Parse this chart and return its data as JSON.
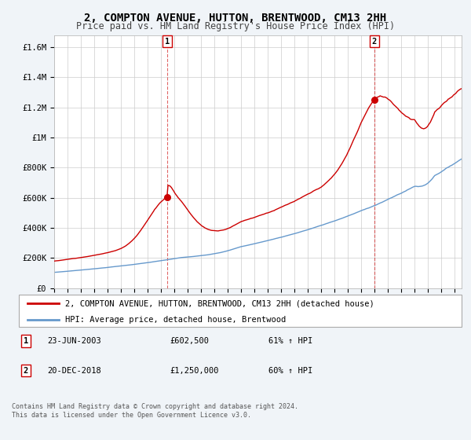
{
  "title": "2, COMPTON AVENUE, HUTTON, BRENTWOOD, CM13 2HH",
  "subtitle": "Price paid vs. HM Land Registry's House Price Index (HPI)",
  "title_fontsize": 10,
  "subtitle_fontsize": 8.5,
  "yticks": [
    0,
    200000,
    400000,
    600000,
    800000,
    1000000,
    1200000,
    1400000,
    1600000
  ],
  "ytick_labels": [
    "£0",
    "£200K",
    "£400K",
    "£600K",
    "£800K",
    "£1M",
    "£1.2M",
    "£1.4M",
    "£1.6M"
  ],
  "xmin": 1995.0,
  "xmax": 2025.5,
  "ymin": 0,
  "ymax": 1680000,
  "line1_color": "#cc0000",
  "line2_color": "#6699cc",
  "marker1_x": 2003.47,
  "marker1_y": 602500,
  "marker2_x": 2018.97,
  "marker2_y": 1250000,
  "legend_line1": "2, COMPTON AVENUE, HUTTON, BRENTWOOD, CM13 2HH (detached house)",
  "legend_line2": "HPI: Average price, detached house, Brentwood",
  "annot1_label": "1",
  "annot1_date": "23-JUN-2003",
  "annot1_price": "£602,500",
  "annot1_hpi": "61% ↑ HPI",
  "annot2_label": "2",
  "annot2_date": "20-DEC-2018",
  "annot2_price": "£1,250,000",
  "annot2_hpi": "60% ↑ HPI",
  "footnote1": "Contains HM Land Registry data © Crown copyright and database right 2024.",
  "footnote2": "This data is licensed under the Open Government Licence v3.0.",
  "bg_color": "#f0f4f8",
  "plot_bg_color": "#ffffff",
  "grid_color": "#cccccc"
}
